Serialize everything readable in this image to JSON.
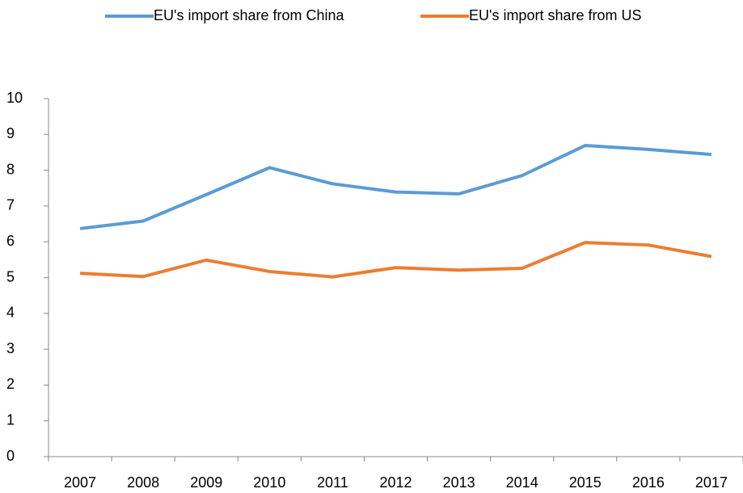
{
  "chart_data": {
    "type": "line",
    "categories": [
      "2007",
      "2008",
      "2009",
      "2010",
      "2011",
      "2012",
      "2013",
      "2014",
      "2015",
      "2016",
      "2017"
    ],
    "series": [
      {
        "name": "EU's import share from China",
        "color": "#5b9bd5",
        "values": [
          6.37,
          6.58,
          7.32,
          8.07,
          7.62,
          7.39,
          7.34,
          7.85,
          8.69,
          8.58,
          8.44
        ]
      },
      {
        "name": "EU's import share from US",
        "color": "#ed7d31",
        "values": [
          5.12,
          5.03,
          5.49,
          5.17,
          5.02,
          5.28,
          5.21,
          5.26,
          5.98,
          5.91,
          5.59
        ]
      }
    ],
    "ylim": [
      0,
      10
    ],
    "yticks": [
      0,
      1,
      2,
      3,
      4,
      5,
      6,
      7,
      8,
      9,
      10
    ],
    "grid": false,
    "legend": "top"
  }
}
